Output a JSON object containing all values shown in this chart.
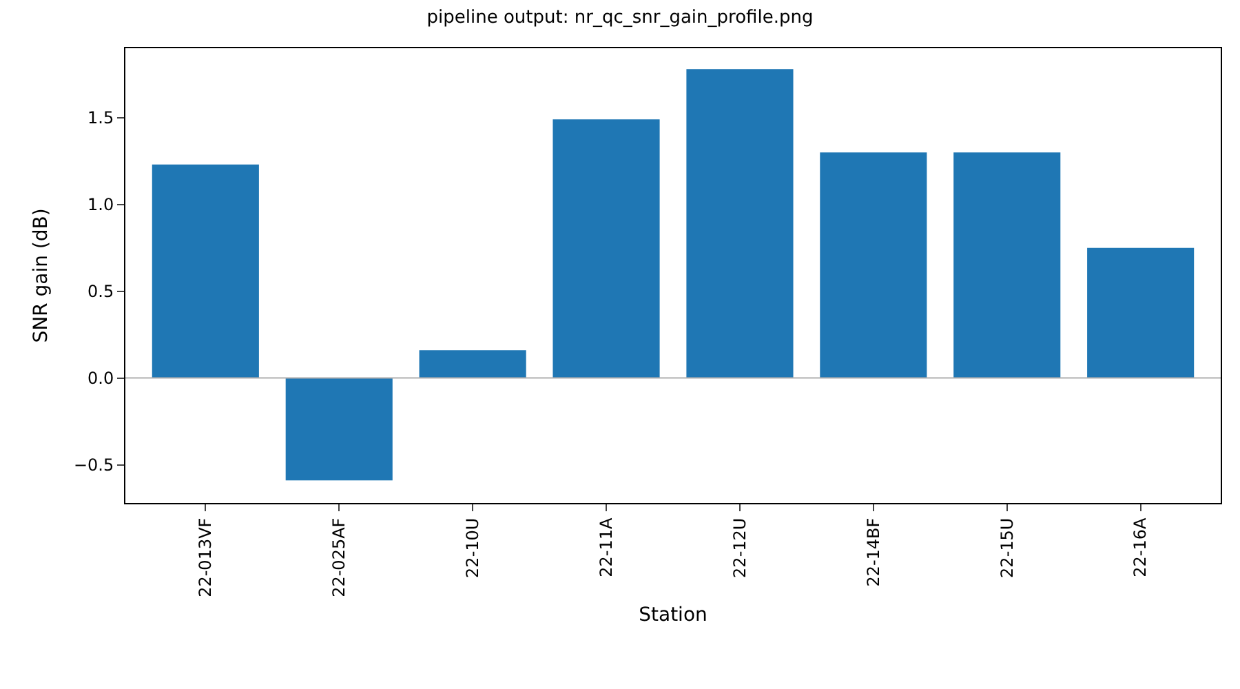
{
  "chart_data": {
    "type": "bar",
    "title": "pipeline output: nr_qc_snr_gain_profile.png",
    "xlabel": "Station",
    "ylabel": "SNR gain (dB)",
    "categories": [
      "22-013VF",
      "22-025AF",
      "22-10U",
      "22-11A",
      "22-12U",
      "22-14BF",
      "22-15U",
      "22-16A"
    ],
    "values": [
      1.23,
      -0.59,
      0.16,
      1.49,
      1.78,
      1.3,
      1.3,
      0.75
    ],
    "color": "#1f77b4",
    "ylim": [
      -0.72,
      1.9
    ],
    "yticks": [
      {
        "value": -0.5,
        "label": "−0.5"
      },
      {
        "value": 0,
        "label": "0.0"
      },
      {
        "value": 0.5,
        "label": "0.5"
      },
      {
        "value": 1,
        "label": "1.0"
      },
      {
        "value": 1.5,
        "label": "1.5"
      }
    ],
    "ref_lines": [
      {
        "axis": "y",
        "value": 0,
        "color": "#b0b0b0"
      }
    ]
  }
}
